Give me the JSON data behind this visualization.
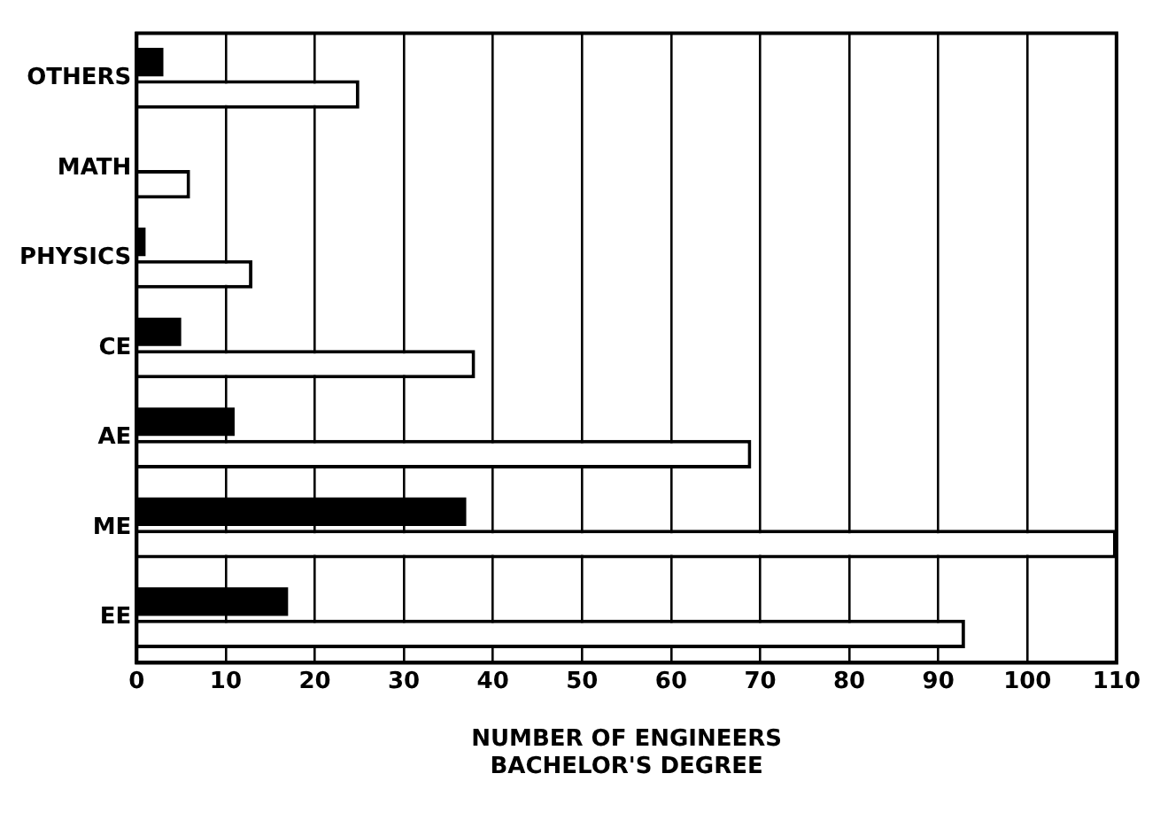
{
  "chart_data": {
    "type": "bar",
    "orientation": "horizontal",
    "xlabel": "NUMBER OF ENGINEERS",
    "annotations": [
      "BACHELOR'S DEGREE"
    ],
    "categories": [
      "OTHERS",
      "MATH",
      "PHYSICS",
      "CE",
      "AE",
      "ME",
      "EE"
    ],
    "series": [
      {
        "color": "#000000",
        "values": [
          3,
          0,
          1,
          5,
          11,
          37,
          17
        ]
      },
      {
        "color": "#ffffff",
        "values": [
          25,
          6,
          13,
          38,
          69,
          110,
          93
        ]
      }
    ],
    "xlim": [
      0,
      110
    ],
    "xticks": [
      0,
      10,
      20,
      30,
      40,
      50,
      60,
      70,
      80,
      90,
      100,
      110
    ],
    "grid": "x",
    "legend": false
  }
}
